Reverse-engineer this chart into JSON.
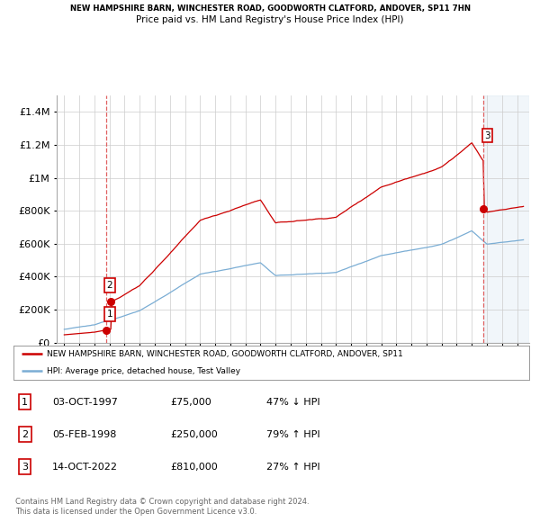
{
  "title_line1": "NEW HAMPSHIRE BARN, WINCHESTER ROAD, GOODWORTH CLATFORD, ANDOVER, SP11 7HN",
  "title_line2": "Price paid vs. HM Land Registry's House Price Index (HPI)",
  "transactions": [
    {
      "num": 1,
      "date": 1997.75,
      "price": 75000,
      "label": "1"
    },
    {
      "num": 2,
      "date": 1998.09,
      "price": 250000,
      "label": "2"
    },
    {
      "num": 3,
      "date": 2022.78,
      "price": 810000,
      "label": "3"
    }
  ],
  "hpi_color": "#7aadd4",
  "price_color": "#cc0000",
  "dashed_line_color": "#e06060",
  "background_color": "#ffffff",
  "grid_color": "#cccccc",
  "ylim": [
    0,
    1500000
  ],
  "yticks": [
    0,
    200000,
    400000,
    600000,
    800000,
    1000000,
    1200000,
    1400000
  ],
  "xlim_start": 1994.5,
  "xlim_end": 2025.8,
  "xticks": [
    1995,
    1996,
    1997,
    1998,
    1999,
    2000,
    2001,
    2002,
    2003,
    2004,
    2005,
    2006,
    2007,
    2008,
    2009,
    2010,
    2011,
    2012,
    2013,
    2014,
    2015,
    2016,
    2017,
    2018,
    2019,
    2020,
    2021,
    2022,
    2023,
    2024,
    2025
  ],
  "legend_label_price": "NEW HAMPSHIRE BARN, WINCHESTER ROAD, GOODWORTH CLATFORD, ANDOVER, SP11",
  "legend_label_hpi": "HPI: Average price, detached house, Test Valley",
  "table_rows": [
    {
      "num": "1",
      "date": "03-OCT-1997",
      "price": "£75,000",
      "change": "47% ↓ HPI"
    },
    {
      "num": "2",
      "date": "05-FEB-1998",
      "price": "£250,000",
      "change": "79% ↑ HPI"
    },
    {
      "num": "3",
      "date": "14-OCT-2022",
      "price": "£810,000",
      "change": "27% ↑ HPI"
    }
  ],
  "footer": "Contains HM Land Registry data © Crown copyright and database right 2024.\nThis data is licensed under the Open Government Licence v3.0."
}
